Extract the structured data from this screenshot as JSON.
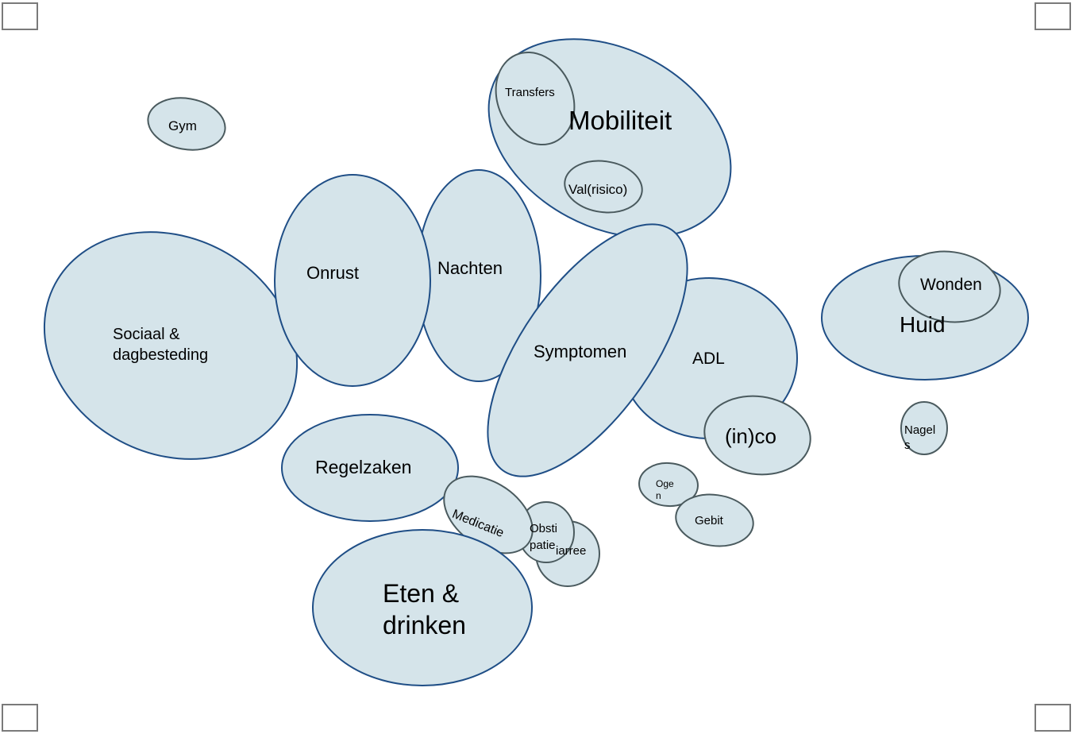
{
  "diagram": {
    "colors": {
      "fill": "#d5e4ea",
      "stroke_primary": "#1f4e86",
      "stroke_secondary": "#4a5a5e",
      "text": "#000000"
    },
    "labels": {
      "gym": "Gym",
      "mobiliteit": "Mobiliteit",
      "transfers": "Transfers",
      "valrisico": "Val(risico)",
      "sociaal": "Sociaal &\ndagbesteding",
      "onrust": "Onrust",
      "nachten": "Nachten",
      "symptomen": "Symptomen",
      "adl": "ADL",
      "inco": "(in)co",
      "huid": "Huid",
      "wonden": "Wonden",
      "nagels": "Nagel\ns",
      "regelzaken": "Regelzaken",
      "medicatie": "Medicatie",
      "obstipatie": "Obsti\npatie",
      "diarree": "iarree",
      "ogen": "Oge\nn",
      "gebit": "Gebit",
      "eten": "Eten &\ndrinken"
    }
  }
}
